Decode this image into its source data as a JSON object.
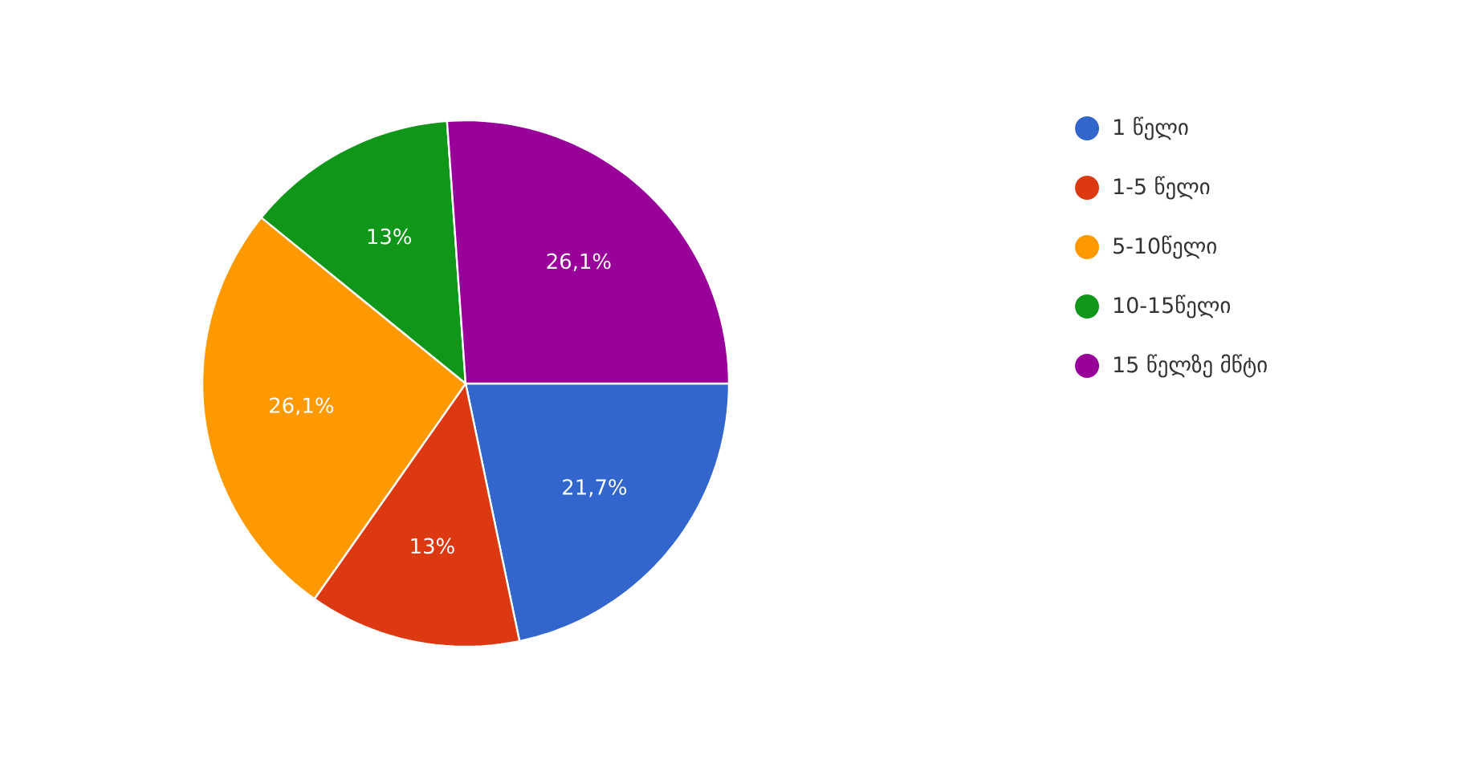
{
  "chart_data": {
    "type": "pie",
    "categories": [
      "1 წელი",
      "1-5 წელი",
      "5-10წელი",
      "10-15წელი",
      "15 წელზე მწტი"
    ],
    "values": [
      21.7,
      13,
      26.1,
      13,
      26.1
    ],
    "colors": [
      "#3366cc",
      "#dc3912",
      "#ff9900",
      "#109618",
      "#990099"
    ],
    "value_labels": [
      "21,7%",
      "13%",
      "26,1%",
      "13%",
      "26,1%"
    ],
    "legend": "right"
  }
}
